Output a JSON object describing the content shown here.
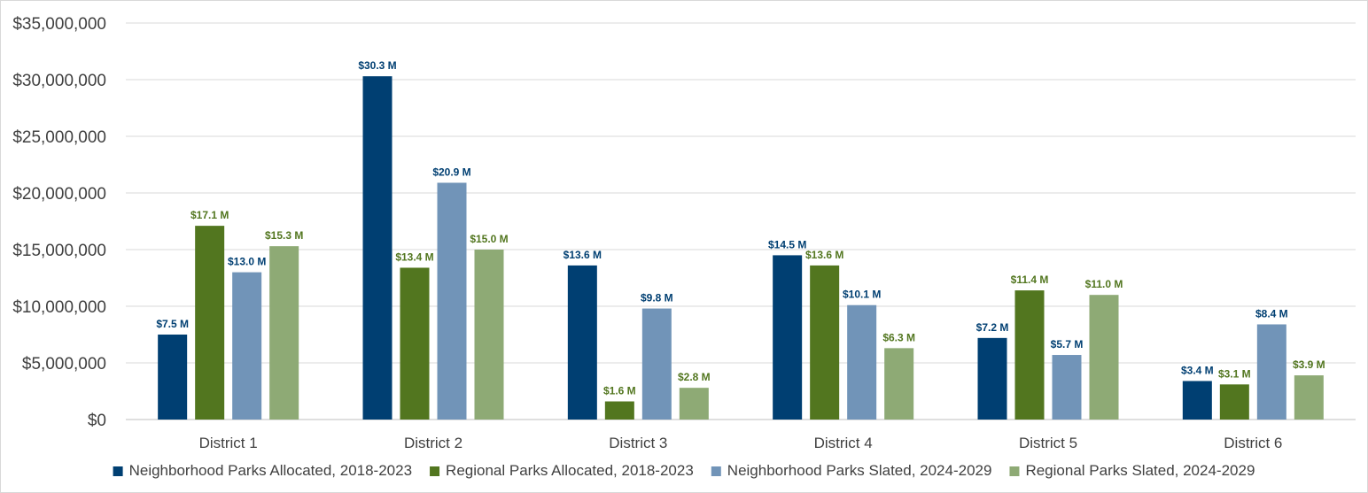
{
  "chart_data": {
    "type": "bar",
    "title": "",
    "xlabel": "",
    "ylabel": "",
    "categories": [
      "District 1",
      "District 2",
      "District 3",
      "District 4",
      "District 5",
      "District 6"
    ],
    "ylim": [
      0,
      35000000
    ],
    "yticks": [
      0,
      5000000,
      10000000,
      15000000,
      20000000,
      25000000,
      30000000,
      35000000
    ],
    "ytick_labels": [
      "$0",
      "$5,000,000",
      "$10,000,000",
      "$15,000,000",
      "$20,000,000",
      "$25,000,000",
      "$30,000,000",
      "$35,000,000"
    ],
    "grid": true,
    "legend_position": "bottom",
    "series": [
      {
        "name": "Neighborhood Parks Allocated, 2018-2023",
        "color": "#003f72",
        "values": [
          7500000,
          30300000,
          13600000,
          14500000,
          7200000,
          3400000
        ],
        "labels": [
          "$7.5 M",
          "$30.3 M",
          "$13.6 M",
          "$14.5 M",
          "$7.2 M",
          "$3.4 M"
        ]
      },
      {
        "name": "Regional Parks Allocated, 2018-2023",
        "color": "#52761f",
        "values": [
          17100000,
          13400000,
          1600000,
          13600000,
          11400000,
          3100000
        ],
        "labels": [
          "$17.1 M",
          "$13.4 M",
          "$1.6 M",
          "$13.6 M",
          "$11.4 M",
          "$3.1 M"
        ]
      },
      {
        "name": "Neighborhood Parks Slated, 2024-2029",
        "color": "#7194b8",
        "values": [
          13000000,
          20900000,
          9800000,
          10100000,
          5700000,
          8400000
        ],
        "labels": [
          "$13.0 M",
          "$20.9 M",
          "$9.8 M",
          "$10.1 M",
          "$5.7 M",
          "$8.4 M"
        ]
      },
      {
        "name": "Regional Parks Slated, 2024-2029",
        "color": "#8eaa75",
        "values": [
          15300000,
          15000000,
          2800000,
          6300000,
          11000000,
          3900000
        ],
        "labels": [
          "$15.3 M",
          "$15.0 M",
          "$2.8 M",
          "$6.3 M",
          "$11.0 M",
          "$3.9 M"
        ]
      }
    ],
    "label_colors": [
      "#003f72",
      "#52761f",
      "#003f72",
      "#52761f"
    ]
  }
}
